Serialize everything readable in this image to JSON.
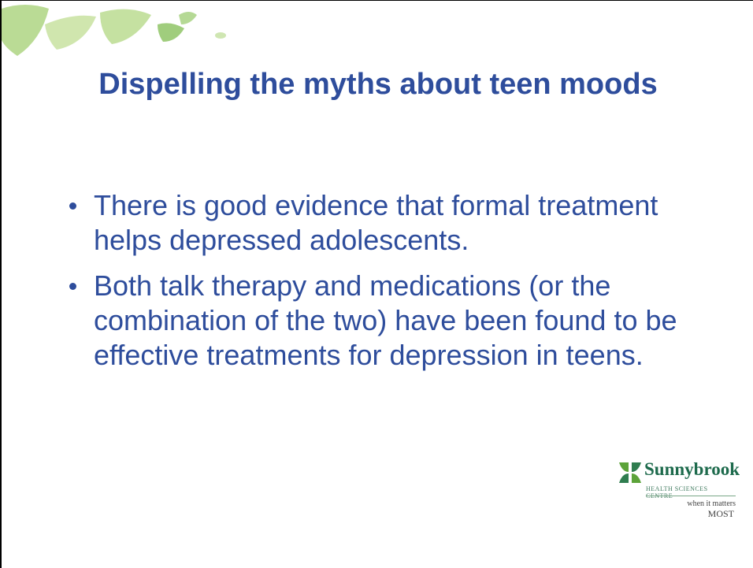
{
  "title": "Dispelling the myths about teen moods",
  "bullets": [
    "There is good evidence that formal treatment helps depressed adolescents.",
    "Both talk therapy and medications (or the combination of the two) have been found to be effective treatments for depression in teens."
  ],
  "logo": {
    "name": "Sunnybrook",
    "subtitle": "HEALTH SCIENCES CENTRE",
    "tagline": "when it matters",
    "tagline_emphasis": "MOST"
  }
}
